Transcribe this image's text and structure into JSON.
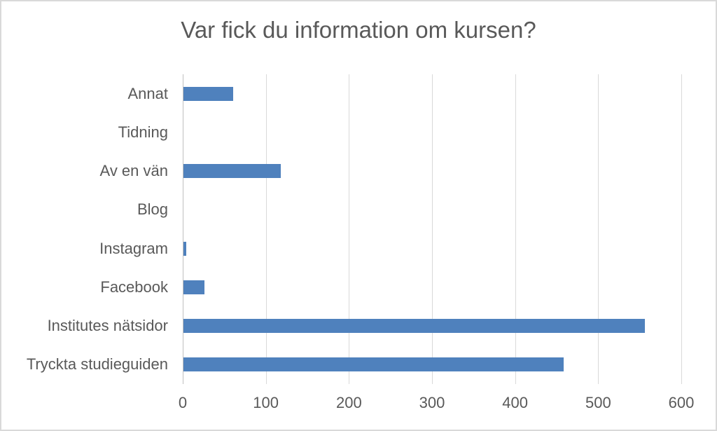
{
  "chart_data": {
    "type": "bar",
    "orientation": "horizontal",
    "title": "Var fick du information om kursen?",
    "categories": [
      "Annat",
      "Tidning",
      "Av en vän",
      "Blog",
      "Instagram",
      "Facebook",
      "Institutes nätsidor",
      "Tryckta studieguiden"
    ],
    "values": [
      60,
      0,
      117,
      0,
      3,
      25,
      555,
      458
    ],
    "xlabel": "",
    "ylabel": "",
    "xlim": [
      0,
      600
    ],
    "xticks": [
      0,
      100,
      200,
      300,
      400,
      500,
      600
    ],
    "grid": "vertical-on",
    "legend": "none",
    "bar_color": "#4f81bd",
    "gridline_color": "#d9d9d9",
    "text_color": "#595959",
    "background_color": "#ffffff"
  }
}
